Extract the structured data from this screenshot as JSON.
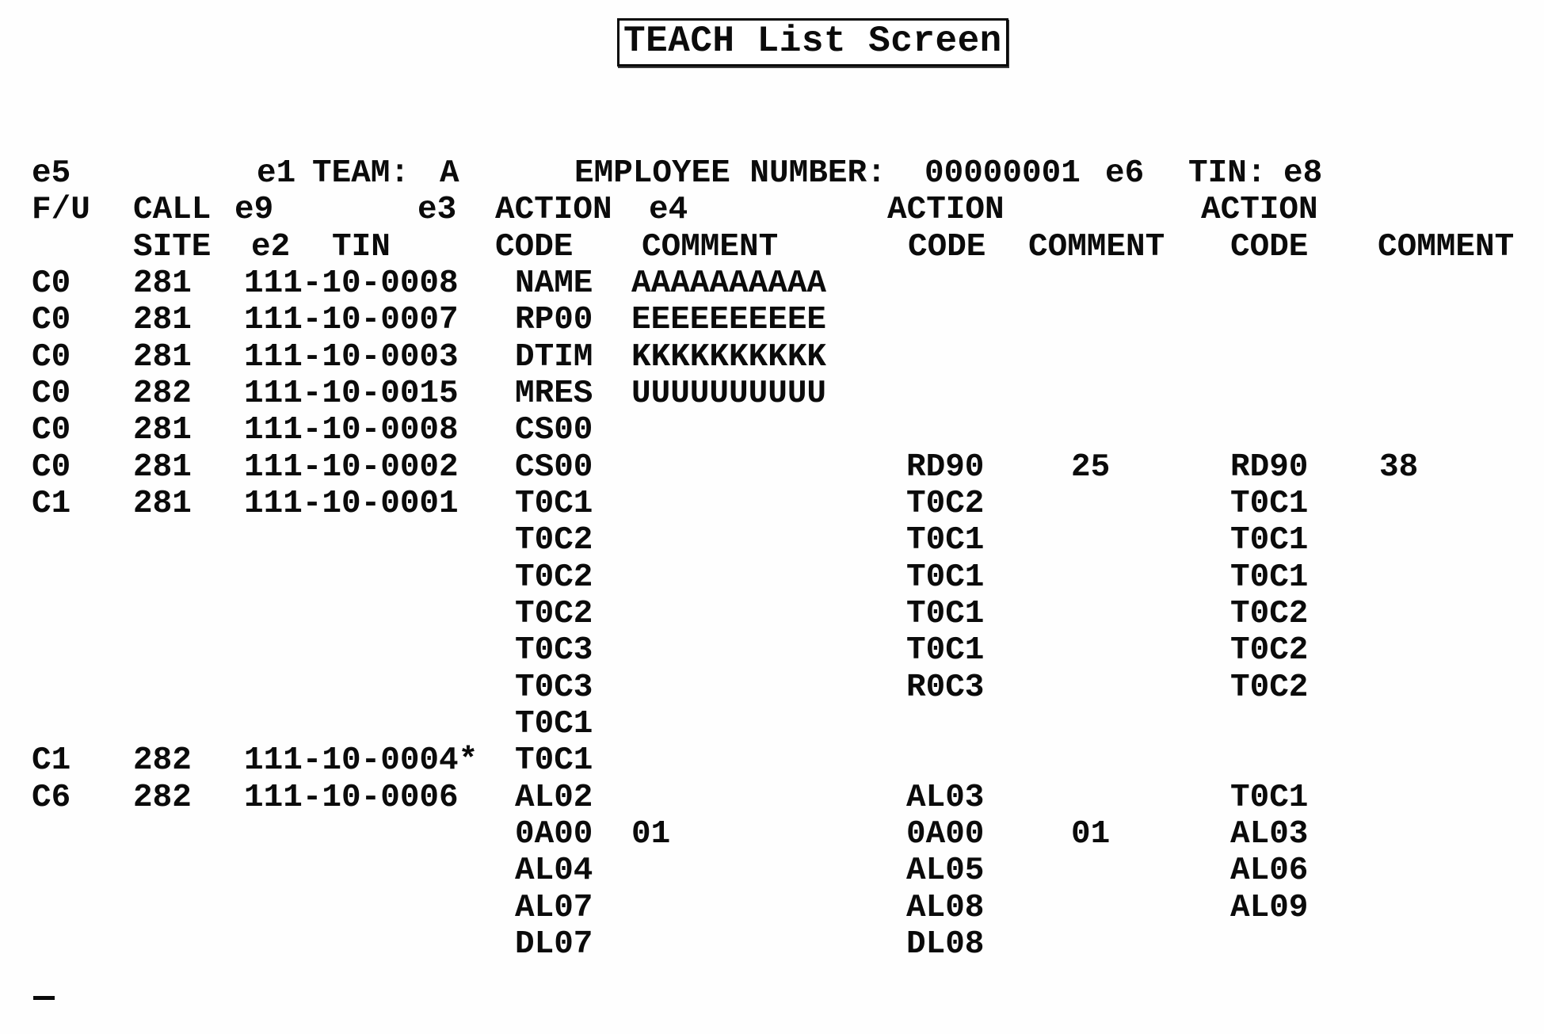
{
  "page": {
    "title": "TEACH List Screen"
  },
  "header": {
    "e5": "e5",
    "e1": "e1",
    "team_label": "TEAM:",
    "team_value": "A",
    "employee_label": "EMPLOYEE NUMBER:",
    "employee_value": "00000001",
    "e6": "e6",
    "tin_label": "TIN:",
    "tin_value": "e8",
    "fu": "F/U",
    "call": "CALL",
    "e9": "e9",
    "e3": "e3",
    "action1": "ACTION",
    "e4": "e4",
    "action2": "ACTION",
    "action3": "ACTION",
    "site": "SITE",
    "e2": "e2",
    "tin_col": "TIN",
    "code1": "CODE",
    "comment1": "COMMENT",
    "code2": "CODE",
    "comment2": "COMMENT",
    "code3": "CODE",
    "comment3": "COMMENT"
  },
  "table": {
    "rows": [
      {
        "fu": "C0",
        "site": "281",
        "tin": "111-10-0008",
        "c1": "NAME",
        "m1": "AAAAAAAAAA",
        "c2": "",
        "m2": "",
        "c3": "",
        "m3": ""
      },
      {
        "fu": "C0",
        "site": "281",
        "tin": "111-10-0007",
        "c1": "RP00",
        "m1": "EEEEEEEEEE",
        "c2": "",
        "m2": "",
        "c3": "",
        "m3": ""
      },
      {
        "fu": "C0",
        "site": "281",
        "tin": "111-10-0003",
        "c1": "DTIM",
        "m1": "KKKKKKKKKK",
        "c2": "",
        "m2": "",
        "c3": "",
        "m3": ""
      },
      {
        "fu": "C0",
        "site": "282",
        "tin": "111-10-0015",
        "c1": "MRES",
        "m1": "UUUUUUUUUU",
        "c2": "",
        "m2": "",
        "c3": "",
        "m3": ""
      },
      {
        "fu": "C0",
        "site": "281",
        "tin": "111-10-0008",
        "c1": "CS00",
        "m1": "",
        "c2": "",
        "m2": "",
        "c3": "",
        "m3": ""
      },
      {
        "fu": "C0",
        "site": "281",
        "tin": "111-10-0002",
        "c1": "CS00",
        "m1": "",
        "c2": "RD90",
        "m2": "25",
        "c3": "RD90",
        "m3": "38"
      },
      {
        "fu": "C1",
        "site": "281",
        "tin": "111-10-0001",
        "c1": "T0C1",
        "m1": "",
        "c2": "T0C2",
        "m2": "",
        "c3": "T0C1",
        "m3": ""
      },
      {
        "fu": "",
        "site": "",
        "tin": "",
        "c1": "T0C2",
        "m1": "",
        "c2": "T0C1",
        "m2": "",
        "c3": "T0C1",
        "m3": ""
      },
      {
        "fu": "",
        "site": "",
        "tin": "",
        "c1": "T0C2",
        "m1": "",
        "c2": "T0C1",
        "m2": "",
        "c3": "T0C1",
        "m3": ""
      },
      {
        "fu": "",
        "site": "",
        "tin": "",
        "c1": "T0C2",
        "m1": "",
        "c2": "T0C1",
        "m2": "",
        "c3": "T0C2",
        "m3": ""
      },
      {
        "fu": "",
        "site": "",
        "tin": "",
        "c1": "T0C3",
        "m1": "",
        "c2": "T0C1",
        "m2": "",
        "c3": "T0C2",
        "m3": ""
      },
      {
        "fu": "",
        "site": "",
        "tin": "",
        "c1": "T0C3",
        "m1": "",
        "c2": "R0C3",
        "m2": "",
        "c3": "T0C2",
        "m3": ""
      },
      {
        "fu": "",
        "site": "",
        "tin": "",
        "c1": "T0C1",
        "m1": "",
        "c2": "",
        "m2": "",
        "c3": "",
        "m3": ""
      },
      {
        "fu": "C1",
        "site": "282",
        "tin": "111-10-0004*",
        "c1": "T0C1",
        "m1": "",
        "c2": "",
        "m2": "",
        "c3": "",
        "m3": ""
      },
      {
        "fu": "C6",
        "site": "282",
        "tin": "111-10-0006",
        "c1": "AL02",
        "m1": "",
        "c2": "AL03",
        "m2": "",
        "c3": "T0C1",
        "m3": ""
      },
      {
        "fu": "",
        "site": "",
        "tin": "",
        "c1": "0A00",
        "m1": "01",
        "c2": "0A00",
        "m2": "01",
        "c3": "AL03",
        "m3": ""
      },
      {
        "fu": "",
        "site": "",
        "tin": "",
        "c1": "AL04",
        "m1": "",
        "c2": "AL05",
        "m2": "",
        "c3": "AL06",
        "m3": ""
      },
      {
        "fu": "",
        "site": "",
        "tin": "",
        "c1": "AL07",
        "m1": "",
        "c2": "AL08",
        "m2": "",
        "c3": "AL09",
        "m3": ""
      },
      {
        "fu": "",
        "site": "",
        "tin": "",
        "c1": "DL07",
        "m1": "",
        "c2": "DL08",
        "m2": "",
        "c3": "",
        "m3": ""
      }
    ]
  },
  "cursor": {
    "symbol": "underscore"
  }
}
